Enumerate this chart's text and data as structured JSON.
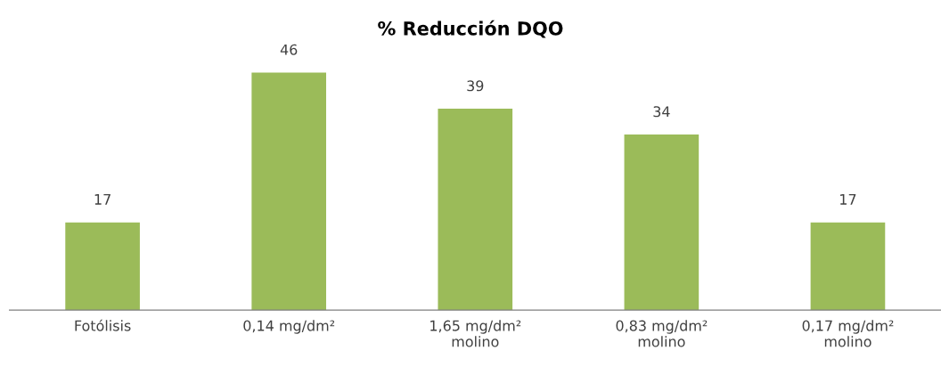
{
  "chart_data": {
    "type": "bar",
    "title": "% Reducción DQO",
    "categories": [
      "Fotólisis",
      "0,14 mg/dm²",
      "1,65 mg/dm²\nmolino",
      "0,83 mg/dm²\nmolino",
      "0,17 mg/dm²\nmolino"
    ],
    "values": [
      17,
      46,
      39,
      34,
      17
    ],
    "color": "#9bbb59",
    "data_labels": true,
    "grid": false
  }
}
